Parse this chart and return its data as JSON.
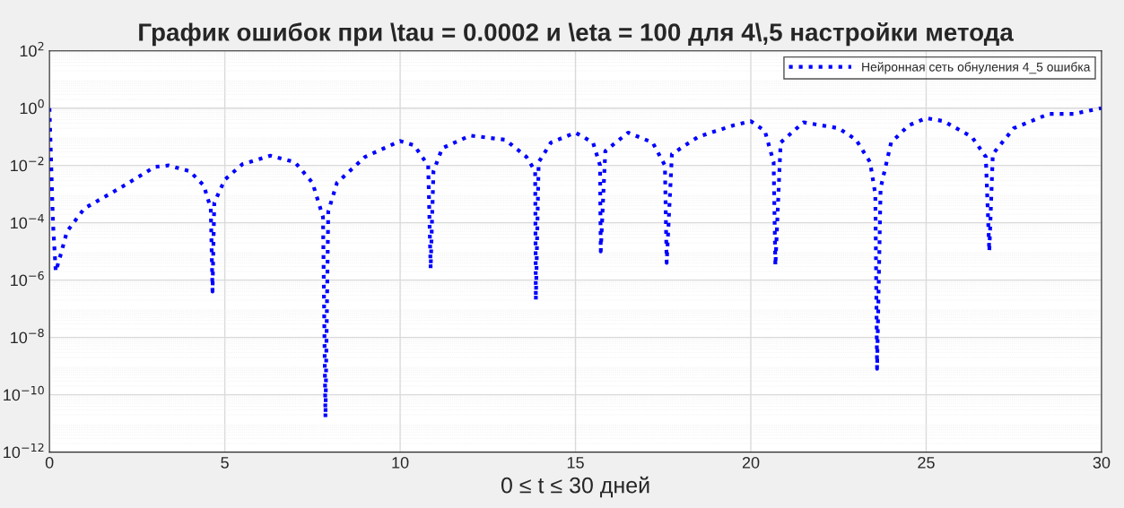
{
  "chart_data": {
    "type": "line",
    "title": "График ошибок при \\tau = 0.0002 и \\eta = 100 для 4\\,5 настройки метода",
    "xlabel": "0 ≤ t ≤ 30 дней",
    "log": "y",
    "grid": true,
    "legend": "top right",
    "line_style": "dotted",
    "marker": "none",
    "xlim": [
      0,
      30
    ],
    "xticks": [
      0,
      5,
      10,
      15,
      20,
      25,
      30
    ],
    "ylim": [
      1e-12,
      100
    ],
    "yticks": [
      {
        "value": 1e-12,
        "label": "10$^{−12}$"
      },
      {
        "value": 1e-10,
        "label": "10$^{−10}$"
      },
      {
        "value": 1e-08,
        "label": "10$^{−8}$"
      },
      {
        "value": 1e-06,
        "label": "10$^{−6}$"
      },
      {
        "value": 0.0001,
        "label": "10$^{−4}$"
      },
      {
        "value": 0.01,
        "label": "10$^{−2}$"
      },
      {
        "value": 1,
        "label": "10$^{0}$"
      },
      {
        "value": 100,
        "label": "10$^{2}$"
      }
    ],
    "series": [
      {
        "name": "Нейронная сеть обнуления 4_5 ошибка",
        "color": "#0000ff",
        "x": [
          0,
          0.05,
          0.1,
          0.18,
          0.3,
          0.5,
          1,
          2,
          3,
          3.4,
          4,
          4.4,
          4.6,
          4.65,
          4.7,
          5,
          5.5,
          6.3,
          7,
          7.5,
          7.8,
          7.87,
          7.95,
          8.2,
          9,
          10,
          10.4,
          10.8,
          10.87,
          10.95,
          11.2,
          12,
          13,
          13.6,
          13.85,
          13.87,
          13.95,
          14.3,
          15,
          15.5,
          15.7,
          15.72,
          15.85,
          16.5,
          17.2,
          17.55,
          17.6,
          17.75,
          18.5,
          19.5,
          20,
          20.4,
          20.65,
          20.7,
          20.85,
          21.5,
          22.5,
          23,
          23.4,
          23.55,
          23.6,
          23.7,
          24,
          24.5,
          25,
          25.5,
          26.3,
          26.7,
          26.8,
          26.9,
          27.5,
          28.5,
          29.2,
          30
        ],
        "values": [
          1,
          0.01,
          0.0001,
          2e-06,
          6.3e-06,
          5e-05,
          0.00032,
          0.0016,
          0.0089,
          0.01,
          0.0063,
          0.002,
          0.00032,
          4e-07,
          0.0005,
          0.0032,
          0.011,
          0.022,
          0.013,
          0.0025,
          0.00016,
          1.6e-11,
          0.00025,
          0.0025,
          0.02,
          0.071,
          0.05,
          0.01,
          2.5e-06,
          0.0063,
          0.04,
          0.11,
          0.079,
          0.02,
          0.0063,
          2e-07,
          0.013,
          0.063,
          0.14,
          0.063,
          0.01,
          1e-05,
          0.032,
          0.14,
          0.063,
          0.01,
          4e-06,
          0.025,
          0.1,
          0.25,
          0.35,
          0.16,
          0.013,
          3.2e-06,
          0.063,
          0.32,
          0.2,
          0.079,
          0.013,
          0.001,
          8e-10,
          0.0016,
          0.063,
          0.25,
          0.45,
          0.35,
          0.1,
          0.02,
          1e-05,
          0.025,
          0.2,
          0.63,
          0.63,
          1
        ]
      }
    ]
  }
}
